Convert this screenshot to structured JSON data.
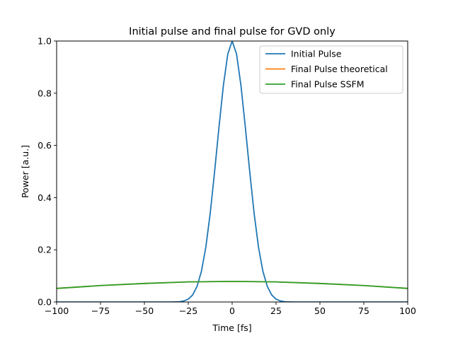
{
  "chart_data": {
    "type": "line",
    "title": "Initial pulse and final pulse for GVD only",
    "xlabel": "Time [fs]",
    "ylabel": "Power [a.u.]",
    "xlim": [
      -100,
      100
    ],
    "ylim": [
      0,
      1
    ],
    "xticks": [
      -100,
      -75,
      -50,
      -25,
      0,
      25,
      50,
      75,
      100
    ],
    "xtick_labels": [
      "−100",
      "−75",
      "−50",
      "−25",
      "0",
      "25",
      "50",
      "75",
      "100"
    ],
    "yticks": [
      0,
      0.2,
      0.4,
      0.6,
      0.8,
      1.0
    ],
    "ytick_labels": [
      "0.0",
      "0.2",
      "0.4",
      "0.6",
      "0.8",
      "1.0"
    ],
    "grid": false,
    "legend_position": "top-right",
    "series": [
      {
        "name": "Initial Pulse",
        "color": "#1f77b4",
        "x": [
          -100,
          -40,
          -35,
          -30,
          -27.5,
          -25,
          -22.5,
          -20,
          -17.5,
          -15,
          -12.5,
          -10,
          -7.5,
          -5,
          -2.5,
          0,
          2.5,
          5,
          7.5,
          10,
          12.5,
          15,
          17.5,
          20,
          22.5,
          25,
          27.5,
          30,
          35,
          40,
          100
        ],
        "y": [
          0,
          0,
          0,
          0.001,
          0.004,
          0.011,
          0.027,
          0.06,
          0.118,
          0.21,
          0.34,
          0.5,
          0.67,
          0.83,
          0.95,
          1.0,
          0.95,
          0.83,
          0.67,
          0.5,
          0.34,
          0.21,
          0.118,
          0.06,
          0.027,
          0.011,
          0.004,
          0.001,
          0,
          0,
          0
        ]
      },
      {
        "name": "Final Pulse theoretical",
        "color": "#ff7f0e",
        "x": [
          -100,
          -75,
          -50,
          -25,
          0,
          25,
          50,
          75,
          100
        ],
        "y": [
          0.052,
          0.063,
          0.071,
          0.077,
          0.079,
          0.077,
          0.071,
          0.063,
          0.052
        ]
      },
      {
        "name": "Final Pulse SSFM",
        "color": "#2ca02c",
        "x": [
          -100,
          -75,
          -50,
          -25,
          0,
          25,
          50,
          75,
          100
        ],
        "y": [
          0.052,
          0.063,
          0.071,
          0.077,
          0.079,
          0.077,
          0.071,
          0.063,
          0.052
        ]
      }
    ]
  }
}
